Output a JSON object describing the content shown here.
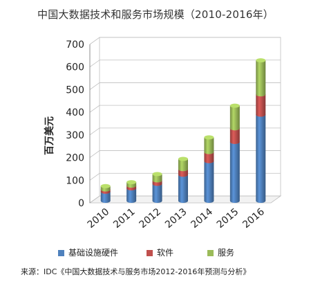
{
  "chart_data": {
    "type": "bar",
    "stacked": true,
    "style": "3d-cylinder",
    "title": "中国大数据技术和服务市场规模（2010-2016年）",
    "ylabel": "百万美元",
    "xlabel": "",
    "ylim": [
      0,
      700
    ],
    "yticks": [
      "0",
      "100",
      "200",
      "300",
      "400",
      "500",
      "600",
      "700"
    ],
    "categories": [
      "2010",
      "2011",
      "2012",
      "2013",
      "2014",
      "2015",
      "2016"
    ],
    "series": [
      {
        "name": "基础设施硬件",
        "color": "#4F81BD",
        "values": [
          40,
          55,
          75,
          115,
          175,
          260,
          380
        ]
      },
      {
        "name": "软件",
        "color": "#C0504D",
        "values": [
          10,
          12,
          15,
          25,
          40,
          60,
          90
        ]
      },
      {
        "name": "服务",
        "color": "#9BBB59",
        "values": [
          15,
          15,
          28,
          45,
          65,
          100,
          150
        ]
      }
    ],
    "grid": true,
    "legend_position": "bottom",
    "source": "来源：IDC《中国大数据技术与服务市场2012-2016年预测与分析》"
  }
}
